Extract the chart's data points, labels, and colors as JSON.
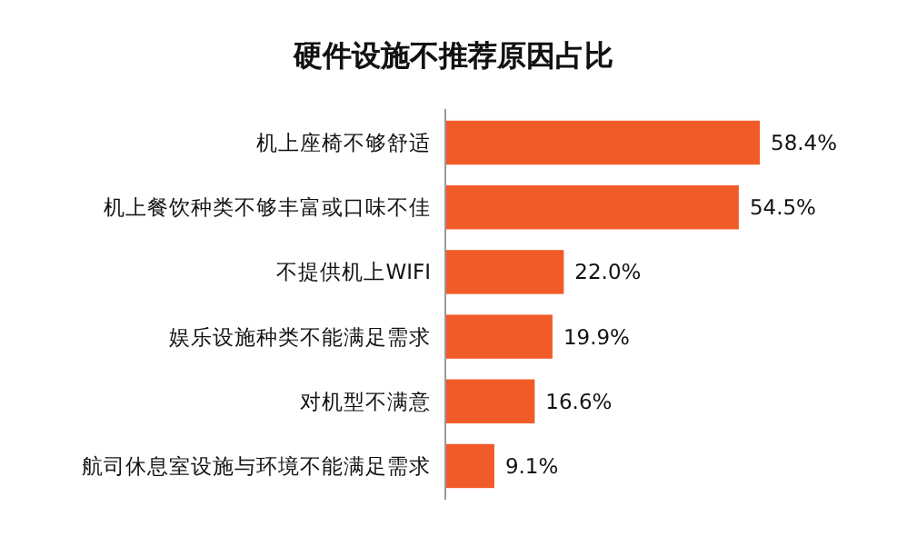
{
  "chart_data": {
    "type": "bar",
    "orientation": "horizontal",
    "title": "硬件设施不推荐原因占比",
    "categories": [
      "机上座椅不够舒适",
      "机上餐饮种类不够丰富或口味不佳",
      "不提供机上WIFI",
      "娱乐设施种类不能满足需求",
      "对机型不满意",
      "航司休息室设施与环境不能满足需求"
    ],
    "values": [
      58.4,
      54.5,
      22.0,
      19.9,
      16.6,
      9.1
    ],
    "value_labels": [
      "58.4%",
      "54.5%",
      "22.0%",
      "19.9%",
      "16.6%",
      "9.1%"
    ],
    "color": "#f15a29"
  }
}
